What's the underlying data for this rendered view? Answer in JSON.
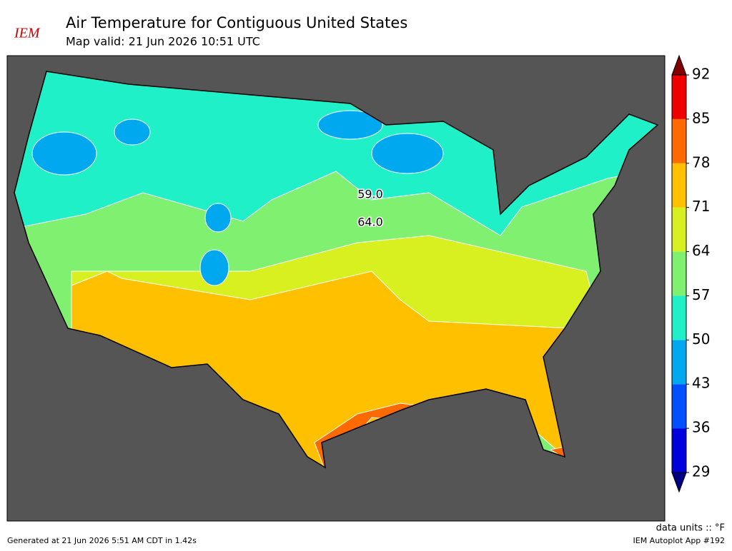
{
  "header": {
    "logo": "IEM",
    "title": "Air Temperature for Contiguous United States",
    "subtitle": "Map valid: 21 Jun 2026 10:51 UTC"
  },
  "colorbar": {
    "ticks": [
      29,
      36,
      43,
      50,
      57,
      64,
      71,
      78,
      85,
      92
    ],
    "colors": [
      "#0000dd",
      "#0050ff",
      "#00a8f0",
      "#20f0c8",
      "#80f070",
      "#d8f020",
      "#ffc000",
      "#ff6a00",
      "#ee0000"
    ],
    "under_color": "#000080",
    "over_color": "#800000",
    "units_label": "data units :: °F"
  },
  "contour_labels": [
    {
      "value": 59,
      "label": "59.0"
    },
    {
      "value": 64,
      "label": "64.0"
    }
  ],
  "footer": {
    "generated": "Generated at 21 Jun 2026 5:51 AM CDT in 1.42s",
    "app": "IEM Autoplot App #192"
  }
}
